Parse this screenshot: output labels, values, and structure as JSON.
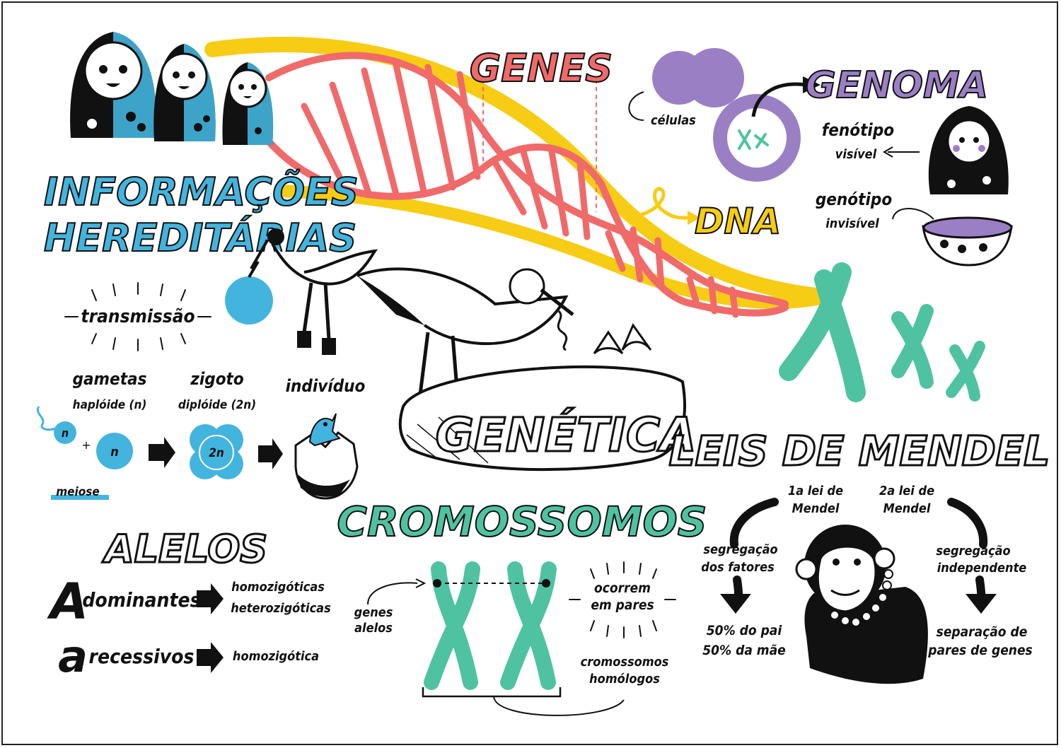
{
  "colors": {
    "teal": "#4fc3a1",
    "blue": "#43b4de",
    "red": "#f06a6a",
    "yellow": "#f7cc14",
    "purple": "#9b7fc4",
    "ink": "#111111"
  },
  "top": {
    "genes": "GENES",
    "celulas": "células",
    "genoma": "GENOMA",
    "fenotipo": "fenótipo",
    "visivel": "visível",
    "genotipo": "genótipo",
    "invisivel": "invisível",
    "dna": "DNA"
  },
  "heredity": {
    "title_line1": "INFORMAÇÕES",
    "title_line2": "HEREDITÁRIAS",
    "transmissao": "transmissão",
    "gametas": "gametas",
    "haploide": "haplóide (n)",
    "zigoto": "zigoto",
    "diploide": "diplóide (2n)",
    "individuo": "indivíduo",
    "n1": "n",
    "plus": "+",
    "n2": "n",
    "two_n": "2n",
    "meiose": "meiose"
  },
  "center": {
    "genetica": "GENÉTICA",
    "cromossomos": "CROMOSSOMOS",
    "genes_alelos_1": "genes",
    "genes_alelos_2": "alelos",
    "ocorrem_1": "ocorrem",
    "ocorrem_2": "em pares",
    "homologos_1": "cromossomos",
    "homologos_2": "homólogos"
  },
  "alelos": {
    "title": "ALELOS",
    "big_a": "A",
    "dominantes": "dominantes",
    "homo_plural": "homozigóticas",
    "hetero_plural": "heterozigóticas",
    "small_a": "a",
    "recessivos": "recessivos",
    "homo_single": "homozigótica"
  },
  "mendel": {
    "title": "LEIS DE MENDEL",
    "lei1_line1": "1a lei de",
    "lei1_line2": "Mendel",
    "lei2_line1": "2a lei de",
    "lei2_line2": "Mendel",
    "segregacao_fatores_1": "segregação",
    "segregacao_fatores_2": "dos fatores",
    "segregacao_indep_1": "segregação",
    "segregacao_indep_2": "independente",
    "pai": "50% do pai",
    "mae": "50% da mãe",
    "separacao_1": "separação de",
    "separacao_2": "pares de genes"
  }
}
